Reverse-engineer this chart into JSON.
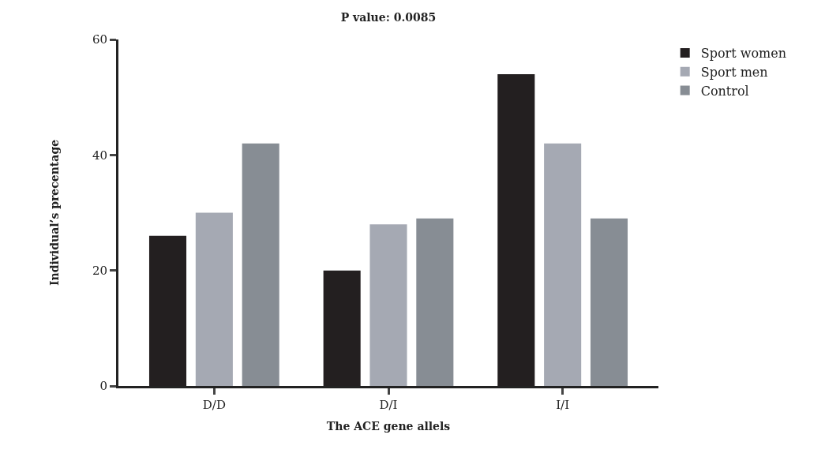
{
  "chart_data": {
    "type": "bar",
    "title": "P value: 0.0085",
    "xlabel": "The ACE gene allels",
    "ylabel": "Individual’s precentage",
    "categories": [
      "D/D",
      "D/I",
      "I/I"
    ],
    "series": [
      {
        "name": "Sport women",
        "color": "#231f20",
        "values": [
          26,
          20,
          54
        ]
      },
      {
        "name": "Sport men",
        "color": "#a5a9b3",
        "values": [
          30,
          28,
          42
        ]
      },
      {
        "name": "Control",
        "color": "#878d94",
        "values": [
          42,
          29,
          29
        ]
      }
    ],
    "ylim": [
      0,
      60
    ],
    "yticks": [
      0,
      20,
      40,
      60
    ],
    "grid": false,
    "legend": "top right"
  }
}
